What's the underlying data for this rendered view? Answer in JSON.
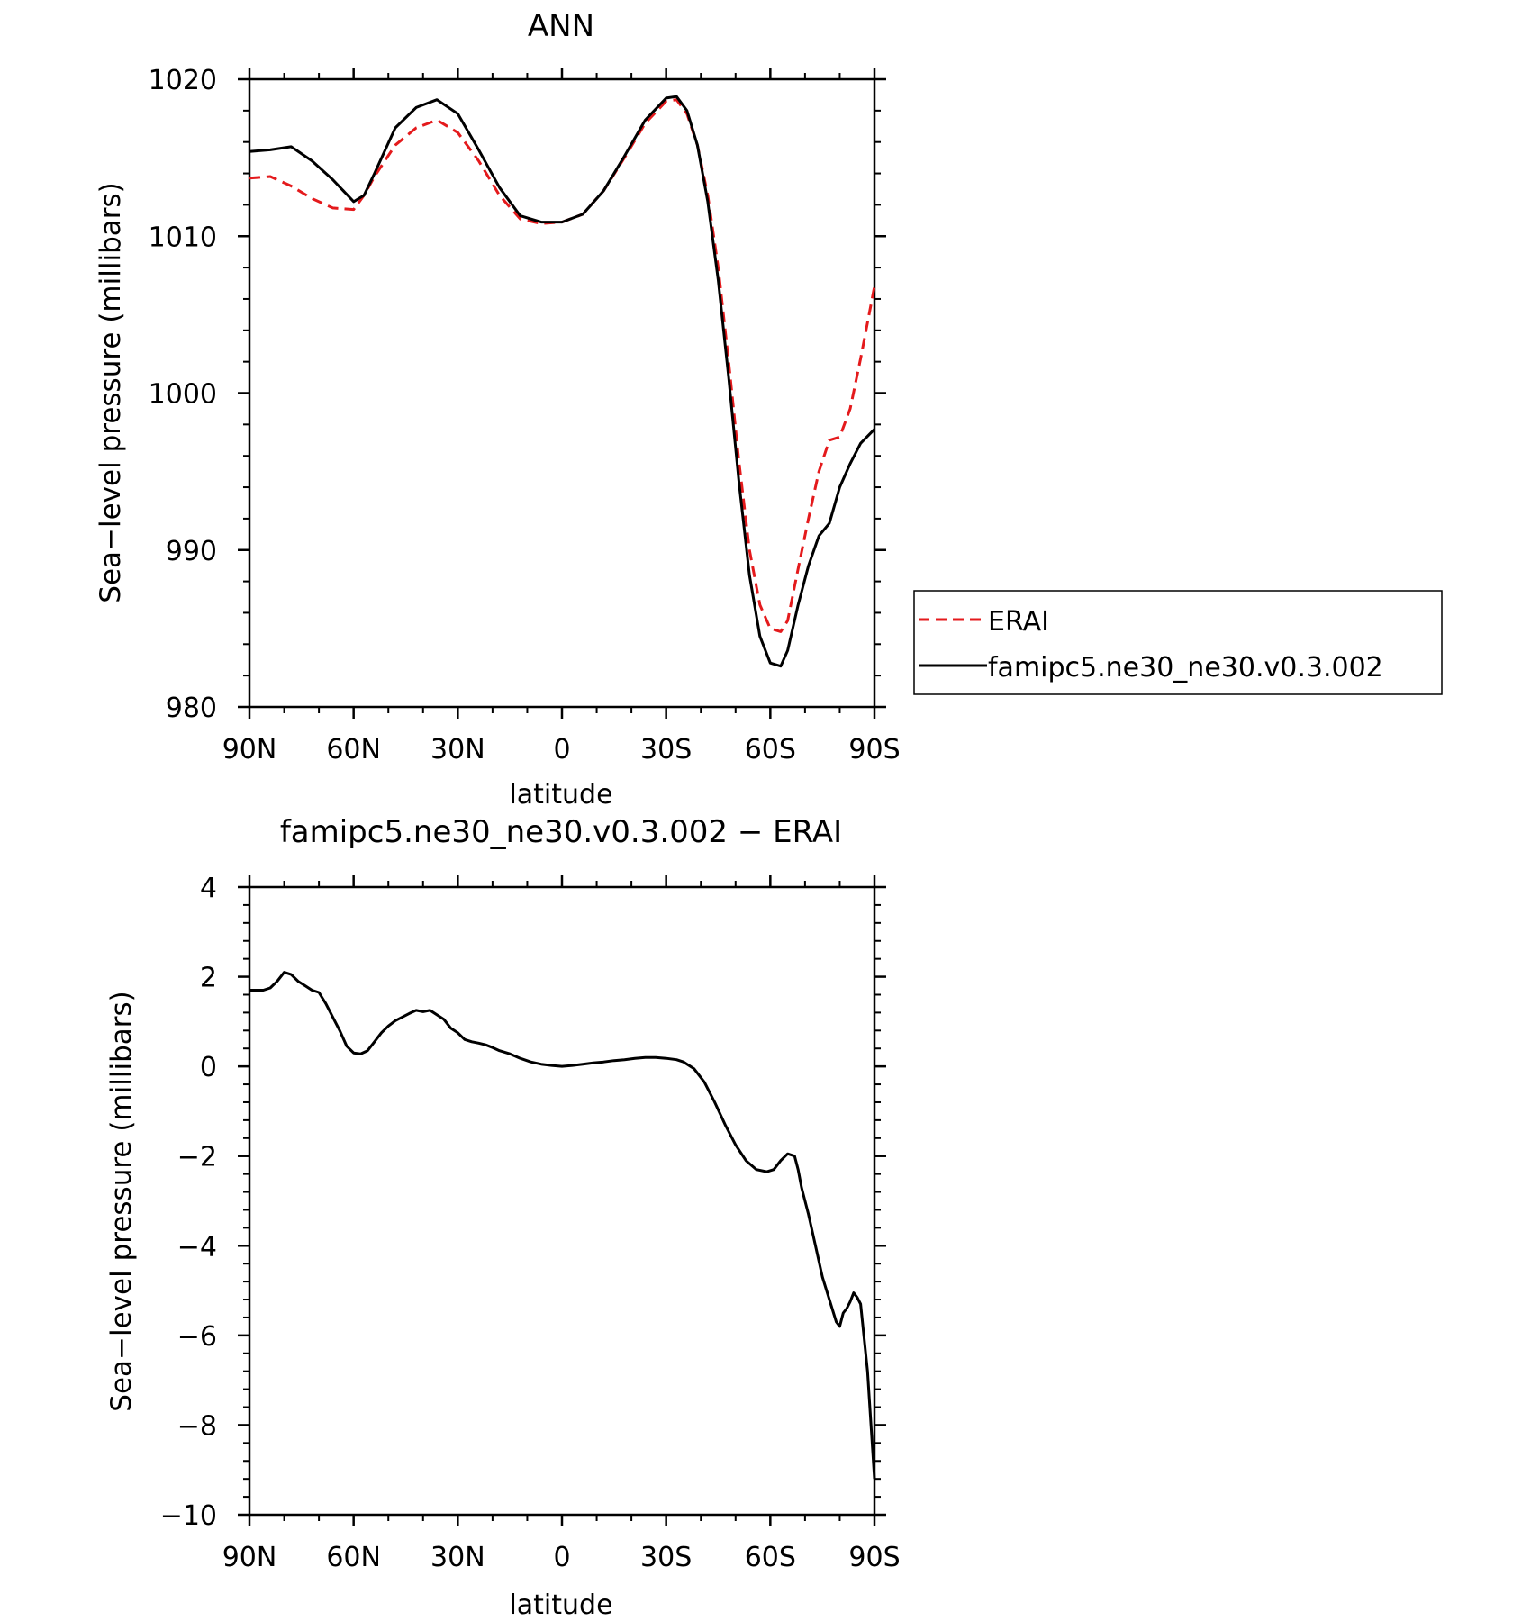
{
  "chart_data": [
    {
      "type": "line",
      "title": "ANN",
      "xlabel": "latitude",
      "ylabel": "Sea−level pressure (millibars)",
      "xlim": [
        90,
        -90
      ],
      "ylim": [
        980,
        1020
      ],
      "xticks": [
        90,
        60,
        30,
        0,
        -30,
        -60,
        -90
      ],
      "xtick_labels": [
        "90N",
        "60N",
        "30N",
        "0",
        "30S",
        "60S",
        "90S"
      ],
      "yticks": [
        980,
        990,
        1000,
        1010,
        1020
      ],
      "ytick_labels": [
        "980",
        "990",
        "1000",
        "1010",
        "1020"
      ],
      "grid": false,
      "legend": {
        "placement": "right-outside"
      },
      "series": [
        {
          "name": "ERAI",
          "color": "#e41a1c",
          "style": "dashed",
          "x": [
            90,
            84,
            78,
            72,
            66,
            60,
            57,
            54,
            48,
            42,
            36,
            30,
            24,
            18,
            12,
            6,
            0,
            -6,
            -12,
            -18,
            -24,
            -30,
            -33,
            -36,
            -39,
            -42,
            -45,
            -48,
            -51,
            -54,
            -57,
            -60,
            -63,
            -65,
            -68,
            -71,
            -74,
            -77,
            -80,
            -83,
            -86,
            -90
          ],
          "values": [
            1013.7,
            1013.8,
            1013.2,
            1012.4,
            1011.8,
            1011.7,
            1012.6,
            1013.8,
            1015.8,
            1016.9,
            1017.4,
            1016.6,
            1014.8,
            1012.6,
            1011.1,
            1010.8,
            1010.9,
            1011.4,
            1012.9,
            1015.0,
            1017.2,
            1018.6,
            1018.7,
            1017.8,
            1015.8,
            1012.6,
            1008.0,
            1002.0,
            995.6,
            990.0,
            986.5,
            985.0,
            984.8,
            985.5,
            988.8,
            992.0,
            995.0,
            997.0,
            997.2,
            999.0,
            1002.2,
            1006.8
          ]
        },
        {
          "name": "famipc5.ne30_ne30.v0.3.002",
          "color": "#000000",
          "style": "solid",
          "x": [
            90,
            84,
            78,
            72,
            66,
            60,
            57,
            54,
            48,
            42,
            36,
            30,
            24,
            18,
            12,
            6,
            0,
            -6,
            -12,
            -18,
            -24,
            -30,
            -33,
            -36,
            -39,
            -42,
            -45,
            -48,
            -51,
            -54,
            -57,
            -60,
            -63,
            -65,
            -68,
            -71,
            -74,
            -77,
            -80,
            -83,
            -86,
            -90
          ],
          "values": [
            1015.4,
            1015.5,
            1015.7,
            1014.8,
            1013.6,
            1012.2,
            1012.6,
            1014.0,
            1016.9,
            1018.2,
            1018.7,
            1017.8,
            1015.5,
            1013.1,
            1011.3,
            1010.9,
            1010.9,
            1011.4,
            1012.9,
            1015.1,
            1017.4,
            1018.8,
            1018.9,
            1018.0,
            1015.8,
            1012.2,
            1007.2,
            1001.0,
            994.3,
            988.4,
            984.5,
            982.8,
            982.6,
            983.6,
            986.5,
            989.0,
            990.9,
            991.7,
            994.0,
            995.5,
            996.8,
            997.7
          ]
        }
      ]
    },
    {
      "type": "line",
      "title": "famipc5.ne30_ne30.v0.3.002 − ERAI",
      "xlabel": "latitude",
      "ylabel": "Sea−level pressure (millibars)",
      "xlim": [
        90,
        -90
      ],
      "ylim": [
        -10,
        4
      ],
      "xticks": [
        90,
        60,
        30,
        0,
        -30,
        -60,
        -90
      ],
      "xtick_labels": [
        "90N",
        "60N",
        "30N",
        "0",
        "30S",
        "60S",
        "90S"
      ],
      "yticks": [
        -10,
        -8,
        -6,
        -4,
        -2,
        0,
        2,
        4
      ],
      "ytick_labels": [
        "−10",
        "−8",
        "−6",
        "−4",
        "−2",
        "0",
        "2",
        "4"
      ],
      "grid": false,
      "series": [
        {
          "color": "#000000",
          "style": "solid",
          "x": [
            90,
            86,
            84,
            82,
            80,
            78,
            76,
            74,
            72,
            70,
            68,
            66,
            64,
            62,
            60,
            58,
            56,
            54,
            52,
            50,
            48,
            46,
            44,
            42,
            40,
            38,
            36,
            34,
            32,
            30,
            28,
            26,
            24,
            22,
            20,
            18,
            15,
            12,
            9,
            6,
            3,
            0,
            -3,
            -6,
            -9,
            -12,
            -15,
            -18,
            -21,
            -24,
            -27,
            -30,
            -33,
            -35,
            -38,
            -41,
            -44,
            -47,
            -50,
            -53,
            -56,
            -59,
            -61,
            -63,
            -65,
            -67,
            -68,
            -69,
            -71,
            -73,
            -75,
            -77,
            -79,
            -80,
            -81,
            -82,
            -83,
            -84,
            -85,
            -86,
            -88,
            -90
          ],
          "values": [
            1.7,
            1.7,
            1.75,
            1.9,
            2.1,
            2.05,
            1.9,
            1.8,
            1.7,
            1.65,
            1.4,
            1.1,
            0.8,
            0.45,
            0.3,
            0.28,
            0.35,
            0.55,
            0.75,
            0.9,
            1.02,
            1.1,
            1.18,
            1.25,
            1.22,
            1.25,
            1.15,
            1.05,
            0.85,
            0.75,
            0.6,
            0.55,
            0.52,
            0.48,
            0.42,
            0.35,
            0.28,
            0.18,
            0.1,
            0.05,
            0.02,
            0.0,
            0.02,
            0.05,
            0.08,
            0.1,
            0.13,
            0.15,
            0.18,
            0.2,
            0.2,
            0.18,
            0.15,
            0.1,
            -0.05,
            -0.35,
            -0.8,
            -1.3,
            -1.75,
            -2.1,
            -2.3,
            -2.35,
            -2.3,
            -2.1,
            -1.95,
            -2.0,
            -2.3,
            -2.7,
            -3.3,
            -4.0,
            -4.7,
            -5.2,
            -5.7,
            -5.8,
            -5.5,
            -5.4,
            -5.25,
            -5.05,
            -5.15,
            -5.3,
            -6.8,
            -9.2
          ]
        }
      ]
    }
  ]
}
